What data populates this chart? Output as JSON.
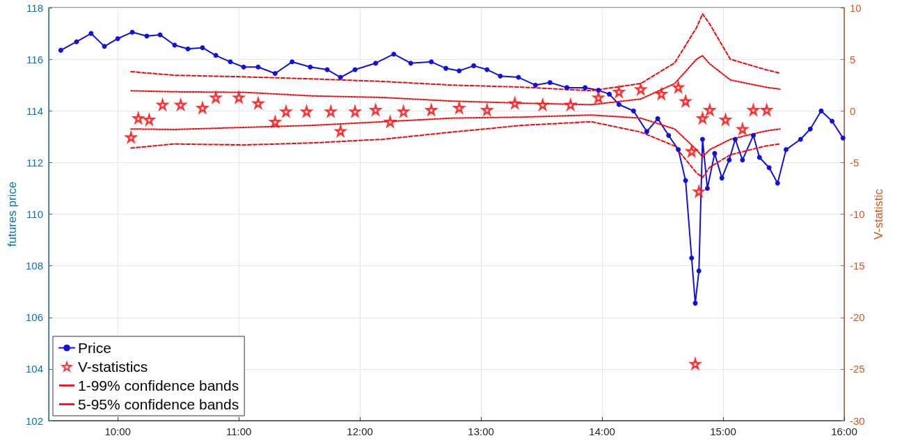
{
  "chart_data": {
    "type": "line",
    "ylabel": "futures price",
    "y2label": "V-statistic",
    "xlim": [
      9.43,
      16.0
    ],
    "xticks": [
      {
        "value": 10,
        "label": "10:00"
      },
      {
        "value": 11,
        "label": "11:00"
      },
      {
        "value": 12,
        "label": "12:00"
      },
      {
        "value": 13,
        "label": "13:00"
      },
      {
        "value": 14,
        "label": "14:00"
      },
      {
        "value": 15,
        "label": "15:00"
      },
      {
        "value": 16,
        "label": "16:00"
      }
    ],
    "ylim": [
      102,
      118
    ],
    "yticks": [
      102,
      104,
      106,
      108,
      110,
      112,
      114,
      116,
      118
    ],
    "y2lim": [
      -30,
      10
    ],
    "y2ticks": [
      -30,
      -25,
      -20,
      -15,
      -10,
      -5,
      0,
      5,
      10
    ],
    "grid": true,
    "legend": "bottom left",
    "series": [
      {
        "name": "Price",
        "color": "#1010e0",
        "marker": "circle",
        "line_style": "solid",
        "x": [
          9.53,
          9.66,
          9.78,
          9.89,
          10.0,
          10.12,
          10.24,
          10.35,
          10.47,
          10.58,
          10.7,
          10.81,
          10.93,
          11.04,
          11.16,
          11.3,
          11.44,
          11.59,
          11.73,
          11.84,
          11.96,
          12.13,
          12.28,
          12.42,
          12.59,
          12.71,
          12.82,
          12.94,
          13.05,
          13.16,
          13.31,
          13.45,
          13.57,
          13.71,
          13.86,
          13.97,
          14.06,
          14.14,
          14.26,
          14.37,
          14.46,
          14.55,
          14.63,
          14.69,
          14.74,
          14.77,
          14.8,
          14.83,
          14.87,
          14.93,
          14.99,
          15.05,
          15.1,
          15.16,
          15.25,
          15.3,
          15.38,
          15.45,
          15.52,
          15.64,
          15.72,
          15.81,
          15.9,
          15.99
        ],
        "values": [
          116.35,
          116.68,
          117.0,
          116.5,
          116.8,
          117.05,
          116.9,
          116.95,
          116.55,
          116.4,
          116.45,
          116.15,
          115.9,
          115.7,
          115.7,
          115.45,
          115.9,
          115.7,
          115.6,
          115.3,
          115.6,
          115.85,
          116.2,
          115.85,
          115.9,
          115.65,
          115.55,
          115.75,
          115.6,
          115.35,
          115.3,
          115.0,
          115.1,
          114.9,
          114.9,
          114.8,
          114.65,
          114.25,
          114.0,
          113.2,
          113.7,
          113.05,
          112.5,
          111.3,
          108.3,
          106.55,
          107.8,
          112.9,
          111.0,
          112.35,
          111.4,
          112.1,
          112.9,
          112.1,
          113.05,
          112.2,
          111.8,
          111.2,
          112.5,
          112.9,
          113.3,
          114.0,
          113.6,
          112.95
        ]
      },
      {
        "name": "V-statistics",
        "type": "scatter",
        "axis": "y2",
        "color": "#ff0000",
        "marker": "star",
        "x": [
          10.11,
          10.17,
          10.26,
          10.37,
          10.52,
          10.7,
          10.81,
          11.0,
          11.16,
          11.3,
          11.39,
          11.56,
          11.76,
          11.84,
          11.96,
          12.13,
          12.25,
          12.36,
          12.59,
          12.82,
          13.05,
          13.28,
          13.51,
          13.74,
          13.97,
          14.14,
          14.32,
          14.49,
          14.63,
          14.69,
          14.74,
          14.77,
          14.8,
          14.83,
          14.89,
          15.02,
          15.16,
          15.25,
          15.36
        ],
        "values": [
          -2.55,
          -0.7,
          -0.85,
          0.6,
          0.6,
          0.3,
          1.3,
          1.3,
          0.75,
          -1.05,
          -0.05,
          -0.05,
          -0.05,
          -1.95,
          -0.05,
          0.1,
          -1.05,
          -0.05,
          0.1,
          0.3,
          0.1,
          0.75,
          0.6,
          0.6,
          1.3,
          1.85,
          2.1,
          1.65,
          2.3,
          0.95,
          -3.9,
          -24.5,
          -7.8,
          -0.7,
          0.1,
          -0.85,
          -1.75,
          0.1,
          0.1
        ]
      },
      {
        "name": "1-99% confidence bands",
        "axis": "y2",
        "color": "#ff0000",
        "marker": "none",
        "line_style": "dashed",
        "x": [
          10.11,
          10.47,
          11.04,
          11.61,
          12.19,
          12.76,
          13.34,
          13.91,
          14.32,
          14.6,
          14.78,
          14.83,
          14.89,
          15.06,
          15.35,
          15.47
        ],
        "values": [
          3.8,
          3.45,
          3.3,
          3.1,
          2.85,
          2.5,
          2.3,
          1.95,
          2.65,
          4.65,
          8.05,
          9.4,
          8.4,
          5.0,
          4.0,
          3.65
        ]
      },
      {
        "axis": "y2",
        "color": "#ff0000",
        "marker": "none",
        "line_style": "dashed",
        "x": [
          10.11,
          10.47,
          11.04,
          11.61,
          12.19,
          12.76,
          13.34,
          13.91,
          14.32,
          14.6,
          14.78,
          14.83,
          14.89,
          15.06,
          15.35,
          15.47
        ],
        "values": [
          -3.6,
          -3.2,
          -3.3,
          -3.1,
          -2.75,
          -2.05,
          -1.4,
          -1.05,
          -2.05,
          -3.4,
          -6.0,
          -6.45,
          -5.45,
          -4.25,
          -3.4,
          -3.2
        ]
      },
      {
        "name": "5-95% confidence bands",
        "axis": "y2",
        "color": "#ff0000",
        "marker": "none",
        "line_style": "dotted",
        "x": [
          10.11,
          10.47,
          11.04,
          11.61,
          12.19,
          12.76,
          13.34,
          13.91,
          14.32,
          14.6,
          14.78,
          14.83,
          14.89,
          15.06,
          15.35,
          15.47
        ],
        "values": [
          1.95,
          1.85,
          1.8,
          1.45,
          1.3,
          0.95,
          0.75,
          0.6,
          1.15,
          2.65,
          5.0,
          5.35,
          4.55,
          3.0,
          2.3,
          2.1
        ]
      },
      {
        "axis": "y2",
        "color": "#ff0000",
        "marker": "none",
        "line_style": "dotted",
        "x": [
          10.11,
          10.47,
          11.04,
          11.61,
          12.19,
          12.76,
          13.34,
          13.91,
          14.32,
          14.6,
          14.78,
          14.83,
          14.89,
          15.06,
          15.35,
          15.47
        ],
        "values": [
          -1.75,
          -1.8,
          -1.6,
          -1.4,
          -1.05,
          -0.7,
          -0.6,
          -0.4,
          -0.7,
          -1.75,
          -3.75,
          -4.45,
          -3.75,
          -2.75,
          -1.95,
          -1.75
        ]
      }
    ]
  }
}
